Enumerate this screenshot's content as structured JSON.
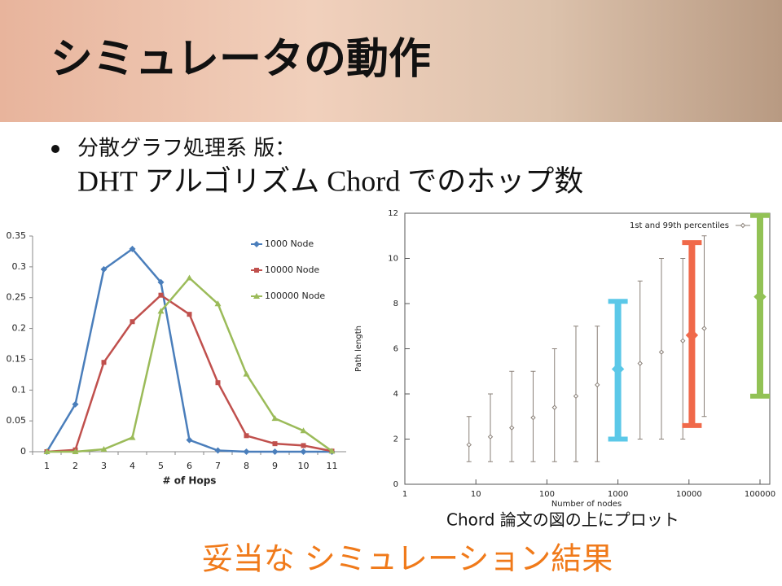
{
  "slide": {
    "title": "シミュレータの動作",
    "bullet": "分散グラフ処理系 版：",
    "subline": "DHT アルゴリズム Chord でのホップ数",
    "caption": "Chord 論文の図の上にプロット",
    "conclusion": "妥当な シミュレーション結果"
  },
  "chart_data": [
    {
      "type": "line",
      "xlabel": "# of Hops",
      "categories": [
        1,
        2,
        3,
        4,
        5,
        6,
        7,
        8,
        9,
        10,
        11
      ],
      "ylim": [
        0,
        0.35
      ],
      "yticks": [
        0,
        0.05,
        0.1,
        0.15,
        0.2,
        0.25,
        0.3,
        0.35
      ],
      "series": [
        {
          "name": "1000 Node",
          "color": "#4a7ebb",
          "marker": "diamond",
          "values": [
            0,
            0.077,
            0.296,
            0.329,
            0.275,
            0.019,
            0.002,
            0,
            0,
            0,
            0
          ]
        },
        {
          "name": "10000 Node",
          "color": "#c0504d",
          "marker": "square",
          "values": [
            0,
            0.003,
            0.145,
            0.211,
            0.254,
            0.223,
            0.112,
            0.026,
            0.013,
            0.01,
            0.001
          ]
        },
        {
          "name": "100000 Node",
          "color": "#9bbb59",
          "marker": "triangle",
          "values": [
            0,
            0,
            0.004,
            0.023,
            0.228,
            0.282,
            0.24,
            0.126,
            0.054,
            0.034,
            0.001
          ]
        }
      ]
    },
    {
      "type": "errorbar",
      "xlabel": "Number of nodes",
      "ylabel": "Path length",
      "log_x": true,
      "xlim": [
        1,
        100000
      ],
      "xticks": [
        1,
        10,
        100,
        1000,
        10000,
        100000
      ],
      "ylim": [
        0,
        12
      ],
      "yticks": [
        0,
        2,
        4,
        6,
        8,
        10,
        12
      ],
      "series": [
        {
          "name": "1st and 99th percentiles",
          "color": "#8a8078",
          "thin": true,
          "x": [
            8,
            16,
            32,
            64,
            128,
            256,
            512,
            2048,
            4096,
            8192,
            16384
          ],
          "values": [
            1.75,
            2.1,
            2.5,
            2.95,
            3.4,
            3.9,
            4.4,
            5.35,
            5.85,
            6.35,
            6.9
          ],
          "low": [
            1,
            1,
            1,
            1,
            1,
            1,
            1,
            2,
            2,
            2,
            3
          ],
          "high": [
            3,
            4,
            5,
            5,
            6,
            7,
            7,
            9,
            10,
            10,
            11
          ]
        },
        {
          "color": "#5bc8e8",
          "x": [
            1000
          ],
          "values": [
            5.1
          ],
          "low": [
            2
          ],
          "high": [
            8.1
          ]
        },
        {
          "color": "#f0694a",
          "x": [
            11000
          ],
          "values": [
            6.6
          ],
          "low": [
            2.6
          ],
          "high": [
            10.7
          ]
        },
        {
          "color": "#92c255",
          "x": [
            100000
          ],
          "values": [
            8.3
          ],
          "low": [
            3.9
          ],
          "high": [
            11.9
          ]
        }
      ]
    }
  ]
}
